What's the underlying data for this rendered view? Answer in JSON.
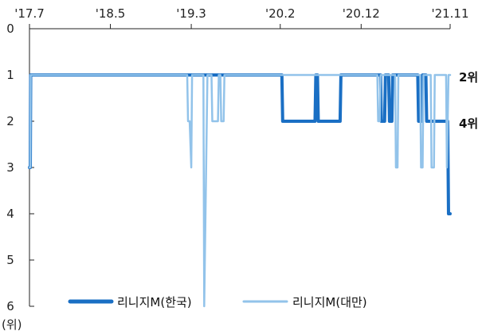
{
  "chart_data": {
    "type": "line",
    "unit_label": "(위)",
    "x_tick_labels": [
      "'17.7",
      "'18.5",
      "'19.3",
      "'20.2",
      "'20.12",
      "'21.11"
    ],
    "x_tick_months": [
      0,
      10,
      20,
      31,
      41,
      52
    ],
    "y_ticks": [
      0,
      1,
      2,
      3,
      4,
      5,
      6
    ],
    "ylim": [
      0,
      6
    ],
    "y_inverted": true,
    "xlim_months": [
      0,
      52
    ],
    "colors": {
      "korea": "#1a6fc4",
      "taiwan": "#92c3ea"
    },
    "end_labels": [
      {
        "text": "2위",
        "value": 1
      },
      {
        "text": "4위",
        "value": 2
      }
    ],
    "series": [
      {
        "name": "리니지M(한국)",
        "color": "#1a6fc4",
        "x": [
          0,
          0.1,
          0.15,
          0.2,
          31.2,
          31.3,
          35.3,
          35.4,
          35.6,
          35.7,
          36.4,
          36.5,
          38.4,
          38.5,
          43.4,
          43.5,
          43.9,
          44.0,
          44.4,
          44.5,
          44.8,
          44.9,
          45.2,
          45.3,
          45.4,
          45.5,
          48.0,
          48.1,
          48.5,
          48.6,
          49.0,
          49.1,
          50.0,
          50.1,
          51.7,
          51.8,
          52.0
        ],
        "y": [
          3,
          3,
          1,
          1,
          1,
          2,
          2,
          1,
          1,
          2,
          2,
          2,
          2,
          1,
          1,
          2,
          2,
          1,
          1,
          2,
          2,
          1,
          1,
          1,
          1,
          1,
          1,
          2,
          2,
          1,
          1,
          2,
          2,
          2,
          2,
          4,
          4
        ]
      },
      {
        "name": "리니지M(대만)",
        "color": "#92c3ea",
        "x": [
          0,
          0.1,
          0.15,
          0.2,
          19.0,
          19.5,
          19.6,
          19.8,
          20.0,
          20.1,
          20.7,
          20.8,
          21.5,
          21.6,
          22.0,
          22.5,
          22.6,
          23.3,
          23.4,
          23.6,
          23.7,
          24.0,
          24.1,
          24.4,
          24.5,
          24.8,
          25.0,
          25.1,
          43.0,
          43.1,
          43.3,
          43.4,
          45.2,
          45.3,
          45.5,
          45.6,
          48.3,
          48.4,
          48.6,
          48.7,
          49.6,
          49.7,
          50.0,
          50.1,
          50.3,
          50.4,
          51.5,
          51.6,
          51.8,
          51.9,
          52.0
        ],
        "y": [
          3,
          3,
          1,
          1,
          1,
          1,
          2,
          2,
          3,
          1,
          1,
          1,
          1,
          6,
          1,
          1,
          2,
          2,
          1,
          1,
          2,
          2,
          1,
          1,
          1,
          1,
          1,
          1,
          1,
          2,
          2,
          1,
          1,
          3,
          3,
          1,
          1,
          3,
          3,
          1,
          1,
          3,
          3,
          1,
          1,
          1,
          1,
          3,
          1,
          1,
          1
        ]
      }
    ]
  }
}
